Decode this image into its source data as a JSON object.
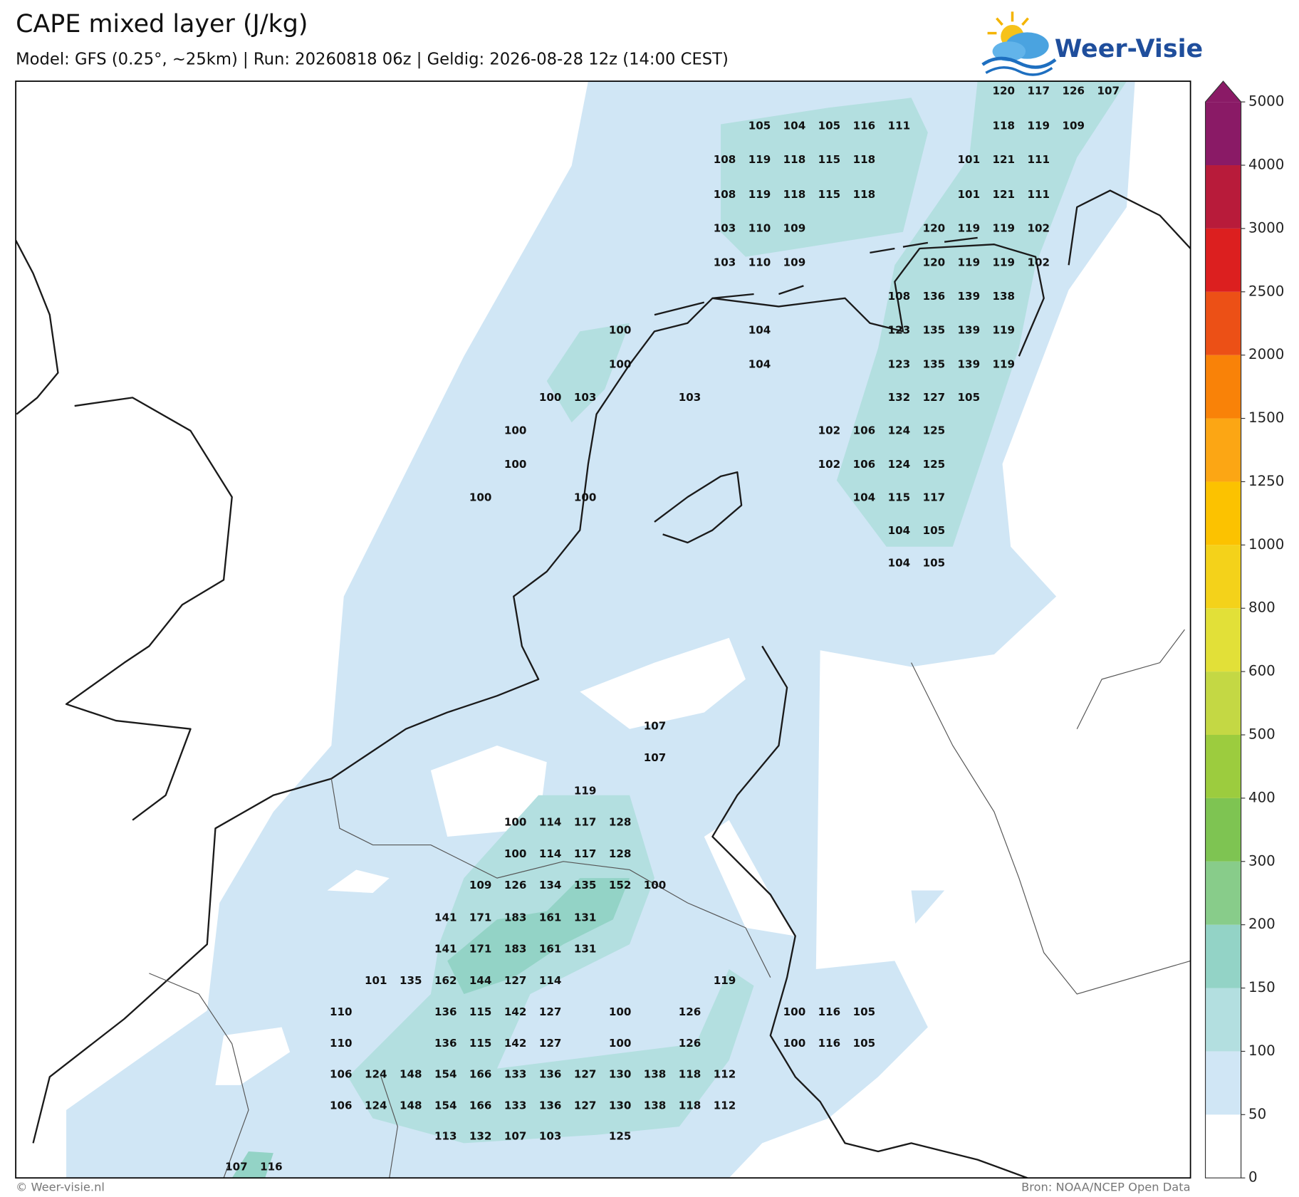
{
  "title": "CAPE mixed layer (J/kg)",
  "subtitle": "Model: GFS (0.25°, ~25km)  |  Run: 20260818 06z  |  Geldig: 2026-08-28 12z (14:00 CEST)",
  "logo": "Weer-Visie",
  "footer_left": "© Weer-visie.nl",
  "footer_right": "Bron: NOAA/NCEP Open Data",
  "colorbar": {
    "ticks": [
      0,
      50,
      100,
      150,
      200,
      300,
      400,
      500,
      600,
      800,
      1000,
      1250,
      1500,
      2000,
      2500,
      3000,
      4000,
      5000
    ],
    "colors": [
      "#ffffff",
      "#d0e6f5",
      "#b3dfe0",
      "#93d3c6",
      "#88cc8a",
      "#7ec452",
      "#9ccc3e",
      "#c4d844",
      "#e2e038",
      "#f4d21a",
      "#fcc200",
      "#fca614",
      "#f98208",
      "#ec5016",
      "#dc1f1f",
      "#b81b3a",
      "#8a1a66"
    ]
  },
  "labels": [
    [
      120,
      117,
      126,
      107
    ],
    [
      105,
      104,
      105,
      116,
      111,
      118,
      119,
      109
    ],
    [
      108,
      119,
      118,
      115,
      118,
      101,
      121,
      111
    ],
    [
      108,
      119,
      118,
      115,
      118,
      101,
      121,
      111
    ],
    [
      103,
      110,
      109,
      120,
      119,
      119,
      102
    ],
    [
      103,
      110,
      109,
      120,
      119,
      119,
      102
    ],
    [
      108,
      136,
      139,
      138
    ],
    [
      100,
      104,
      123,
      135,
      139,
      119
    ],
    [
      100,
      104,
      123,
      135,
      139,
      119
    ],
    [
      100,
      103,
      103,
      132,
      127,
      105
    ],
    [
      100,
      102,
      106,
      124,
      125
    ],
    [
      100,
      102,
      106,
      124,
      125
    ],
    [
      100,
      100,
      104,
      115,
      117
    ],
    [
      104,
      105
    ],
    [
      104,
      105
    ],
    [
      107
    ],
    [
      107
    ],
    [
      119
    ],
    [
      100,
      114,
      117,
      128
    ],
    [
      100,
      114,
      117,
      128
    ],
    [
      109,
      126,
      134,
      135,
      152,
      100
    ],
    [
      141,
      171,
      183,
      161,
      131
    ],
    [
      141,
      171,
      183,
      161,
      131
    ],
    [
      101,
      135,
      162,
      144,
      127,
      114,
      119
    ],
    [
      110,
      136,
      115,
      142,
      127,
      100,
      126,
      100,
      116,
      105
    ],
    [
      110,
      136,
      115,
      142,
      127,
      100,
      126,
      100,
      116,
      105
    ],
    [
      106,
      124,
      148,
      154,
      166,
      133,
      136,
      127,
      130,
      138,
      118,
      112
    ],
    [
      106,
      124,
      148,
      154,
      166,
      133,
      136,
      127,
      130,
      138,
      118,
      112
    ],
    [
      113,
      132,
      107,
      103,
      125
    ],
    [
      107,
      116
    ]
  ]
}
